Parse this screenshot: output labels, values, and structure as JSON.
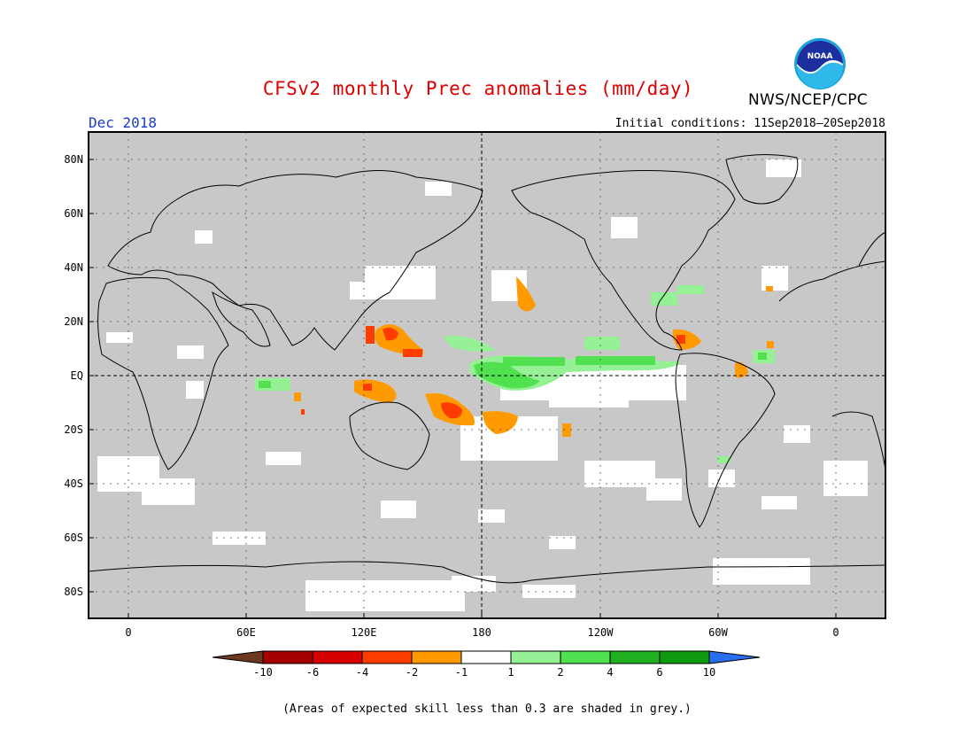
{
  "header": {
    "title": "CFSv2 monthly Prec anomalies (mm/day)",
    "month": "Dec 2018",
    "initial_conditions": "Initial conditions: 11Sep2018–20Sep2018",
    "organization": "NWS/NCEP/CPC",
    "logo_text": "NOAA",
    "logo_icon": "noaa-logo-icon"
  },
  "axes": {
    "lat_labels": [
      "80N",
      "60N",
      "40N",
      "20N",
      "EQ",
      "20S",
      "40S",
      "60S",
      "80S"
    ],
    "lon_labels": [
      "0",
      "60E",
      "120E",
      "180",
      "120W",
      "60W",
      "0"
    ]
  },
  "colorbar": {
    "labels": [
      "-10",
      "-6",
      "-4",
      "-2",
      "-1",
      "1",
      "2",
      "4",
      "6",
      "10"
    ],
    "low_color": "#6b3a1e",
    "high_color": "#2a6ef0",
    "colors": [
      "#a40000",
      "#d60000",
      "#ff3c00",
      "#ff9a00",
      "#ffffff",
      "#96f096",
      "#50e050",
      "#20b020",
      "#109a10"
    ]
  },
  "colors": {
    "grey_skill": "#c8c8c8",
    "title": "#e00000",
    "month": "#1a3cc8"
  },
  "footnote": "(Areas of expected skill less than 0.3 are shaded in grey.)"
}
